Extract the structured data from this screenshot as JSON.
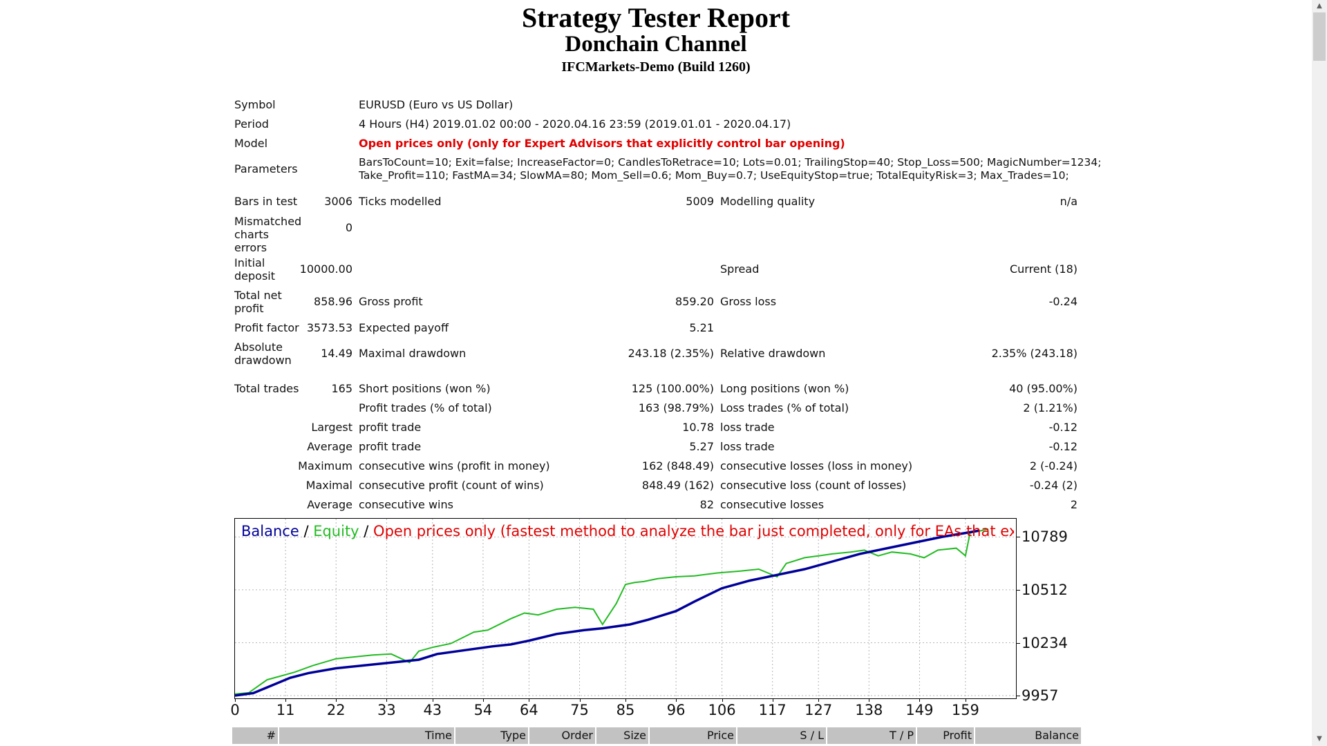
{
  "header": {
    "title": "Strategy Tester Report",
    "subtitle": "Donchain Channel",
    "server": "IFCMarkets-Demo (Build 1260)"
  },
  "report": {
    "symbol_label": "Symbol",
    "symbol": "EURUSD (Euro vs US Dollar)",
    "period_label": "Period",
    "period": "4 Hours (H4) 2019.01.02 00:00 - 2020.04.16 23:59 (2019.01.01 - 2020.04.17)",
    "model_label": "Model",
    "model": "Open prices only (only for Expert Advisors that explicitly control bar opening)",
    "parameters_label": "Parameters",
    "parameters_line1": "BarsToCount=10; Exit=false; IncreaseFactor=0; CandlesToRetrace=10; Lots=0.01; TrailingStop=40; Stop_Loss=500; MagicNumber=1234;",
    "parameters_line2": "Take_Profit=110; FastMA=34; SlowMA=80; Mom_Sell=0.6; Mom_Buy=0.7; UseEquityStop=true; TotalEquityRisk=3; Max_Trades=10;",
    "bars_label": "Bars in test",
    "bars": "3006",
    "ticks_label": "Ticks modelled",
    "ticks": "5009",
    "quality_label": "Modelling quality",
    "quality": "n/a",
    "mismatch_label": "Mismatched charts errors",
    "mismatch": "0",
    "deposit_label": "Initial deposit",
    "deposit": "10000.00",
    "spread_label": "Spread",
    "spread": "Current (18)",
    "net_label": "Total net profit",
    "net": "858.96",
    "gross_profit_label": "Gross profit",
    "gross_profit": "859.20",
    "gross_loss_label": "Gross loss",
    "gross_loss": "-0.24",
    "pf_label": "Profit factor",
    "pf": "3573.53",
    "payoff_label": "Expected payoff",
    "payoff": "5.21",
    "abs_dd_label": "Absolute drawdown",
    "abs_dd": "14.49",
    "max_dd_label": "Maximal drawdown",
    "max_dd": "243.18 (2.35%)",
    "rel_dd_label": "Relative drawdown",
    "rel_dd": "2.35% (243.18)",
    "trades_label": "Total trades",
    "trades": "165",
    "short_label": "Short positions (won %)",
    "short": "125 (100.00%)",
    "long_label": "Long positions (won %)",
    "long": "40 (95.00%)",
    "profit_trades_label": "Profit trades (% of total)",
    "profit_trades": "163 (98.79%)",
    "loss_trades_label": "Loss trades (% of total)",
    "loss_trades": "2 (1.21%)",
    "largest_label": "Largest",
    "largest_profit_label": "profit trade",
    "largest_profit": "10.78",
    "largest_loss_label": "loss trade",
    "largest_loss": "-0.12",
    "average_label": "Average",
    "average_profit_label": "profit trade",
    "average_profit": "5.27",
    "average_loss_label": "loss trade",
    "average_loss": "-0.12",
    "maximum_label": "Maximum",
    "max_wins_label": "consecutive wins (profit in money)",
    "max_wins": "162 (848.49)",
    "max_losses_label": "consecutive losses (loss in money)",
    "max_losses": "2 (-0.24)",
    "maximal_label": "Maximal",
    "maximal_profit_label": "consecutive profit (count of wins)",
    "maximal_profit": "848.49 (162)",
    "maximal_loss_label": "consecutive loss (count of losses)",
    "maximal_loss": "-0.24 (2)",
    "avg_consec_label": "Average",
    "avg_wins_label": "consecutive wins",
    "avg_wins": "82",
    "avg_losses_label": "consecutive losses",
    "avg_losses": "2"
  },
  "chart_data": {
    "type": "line",
    "legend": {
      "balance": "Balance",
      "sep": " / ",
      "equity": "Equity",
      "model_note": "Open prices only (fastest method to analyze the bar just completed, only for EAs that explicitly control b"
    },
    "colors": {
      "balance": "#000099",
      "equity": "#22bb22",
      "note": "#e00000",
      "grid": "#b4b4b4"
    },
    "x_ticks": [
      "0",
      "11",
      "22",
      "33",
      "43",
      "54",
      "64",
      "75",
      "85",
      "96",
      "106",
      "117",
      "127",
      "138",
      "149",
      "159"
    ],
    "y_ticks": [
      "10789",
      "10512",
      "10234",
      "9957"
    ],
    "xlim": [
      0,
      170
    ],
    "ylim": [
      9957,
      10870
    ],
    "series": [
      {
        "name": "Balance",
        "x": [
          0,
          4,
          8,
          12,
          16,
          22,
          28,
          34,
          40,
          44,
          50,
          56,
          60,
          64,
          70,
          76,
          80,
          86,
          90,
          96,
          100,
          106,
          112,
          118,
          124,
          130,
          136,
          142,
          148,
          154,
          159,
          162
        ],
        "y": [
          9957,
          9970,
          10010,
          10050,
          10075,
          10100,
          10115,
          10130,
          10145,
          10175,
          10195,
          10215,
          10225,
          10245,
          10280,
          10300,
          10310,
          10330,
          10355,
          10400,
          10450,
          10520,
          10560,
          10590,
          10620,
          10660,
          10700,
          10730,
          10760,
          10790,
          10810,
          10822
        ]
      },
      {
        "name": "Equity",
        "x": [
          0,
          3,
          7,
          10,
          13,
          17,
          22,
          26,
          30,
          34,
          38,
          40,
          43,
          47,
          52,
          55,
          60,
          63,
          66,
          70,
          74,
          78,
          80,
          83,
          85,
          87,
          89,
          92,
          96,
          100,
          105,
          110,
          114,
          118,
          120,
          124,
          127,
          130,
          134,
          137,
          140,
          143,
          147,
          150,
          153,
          157,
          159,
          160,
          162,
          164
        ],
        "y": [
          9965,
          9972,
          10040,
          10060,
          10080,
          10115,
          10150,
          10160,
          10170,
          10175,
          10130,
          10190,
          10210,
          10230,
          10290,
          10300,
          10360,
          10390,
          10380,
          10410,
          10420,
          10410,
          10330,
          10440,
          10540,
          10550,
          10555,
          10570,
          10580,
          10585,
          10600,
          10610,
          10620,
          10580,
          10650,
          10680,
          10690,
          10700,
          10710,
          10720,
          10690,
          10710,
          10700,
          10680,
          10720,
          10730,
          10690,
          10810,
          10820,
          10830
        ]
      }
    ]
  },
  "orders_table": {
    "columns": [
      "#",
      "Time",
      "Type",
      "Order",
      "Size",
      "Price",
      "S / L",
      "T / P",
      "Profit",
      "Balance"
    ]
  }
}
